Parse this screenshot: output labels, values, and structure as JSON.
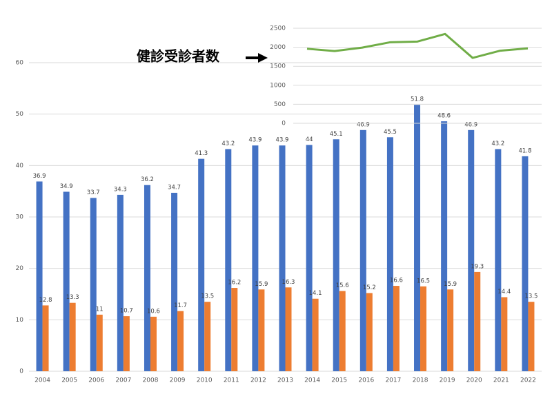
{
  "chart_data": [
    {
      "type": "bar",
      "categories": [
        "2004",
        "2005",
        "2006",
        "2007",
        "2008",
        "2009",
        "2010",
        "2011",
        "2012",
        "2013",
        "2014",
        "2015",
        "2016",
        "2017",
        "2018",
        "2019",
        "2020",
        "2021",
        "2022"
      ],
      "series": [
        {
          "color": "#4472c4",
          "values": [
            36.9,
            34.9,
            33.7,
            34.3,
            36.2,
            34.7,
            41.3,
            43.2,
            43.9,
            43.9,
            44,
            45.1,
            46.9,
            45.5,
            51.8,
            48.6,
            46.9,
            43.2,
            41.8
          ]
        },
        {
          "color": "#ed7d31",
          "values": [
            12.8,
            13.3,
            11,
            10.7,
            10.6,
            11.7,
            13.5,
            16.2,
            15.9,
            16.3,
            14.1,
            15.6,
            15.2,
            16.6,
            16.5,
            15.9,
            19.3,
            14.4,
            13.5
          ]
        }
      ],
      "ylim": [
        0,
        60
      ],
      "yticks": [
        0,
        10,
        20,
        30,
        40,
        50,
        60
      ],
      "grid": true
    },
    {
      "type": "line",
      "annotation": "健診受診者数",
      "categories": [
        null,
        null,
        null,
        null,
        null,
        null,
        null,
        null,
        null
      ],
      "series": [
        {
          "color": "#70ad47",
          "values": [
            1960,
            1900,
            1990,
            2130,
            2150,
            2350,
            1720,
            1910,
            1970
          ]
        }
      ],
      "ylim": [
        0,
        2500
      ],
      "yticks": [
        0,
        500,
        1000,
        1500,
        2000,
        2500
      ],
      "grid": true
    }
  ]
}
